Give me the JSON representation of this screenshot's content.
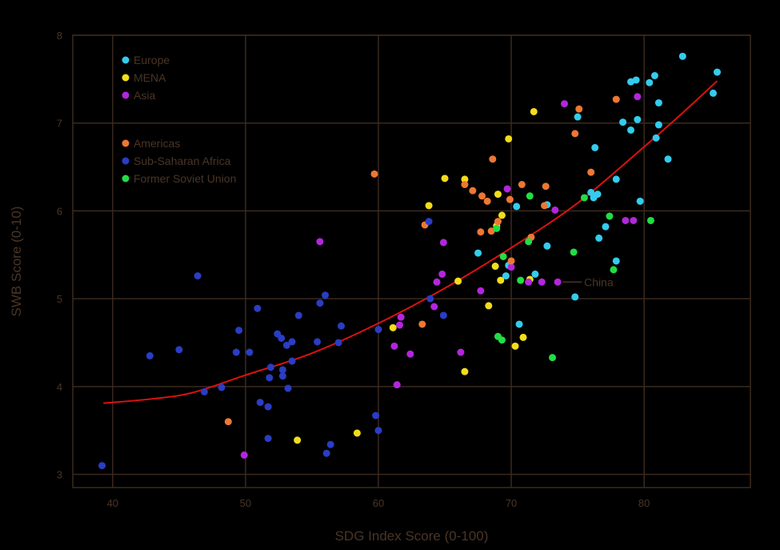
{
  "chart_data": {
    "type": "scatter",
    "title": "",
    "xlabel": "SDG Index Score (0-100)",
    "ylabel": "SWB Score (0-10)",
    "xlim": [
      37,
      88
    ],
    "ylim": [
      2.85,
      8
    ],
    "xticks": [
      40,
      50,
      60,
      70,
      80
    ],
    "yticks": [
      3,
      4,
      5,
      6,
      7,
      8
    ],
    "grid": true,
    "legend_position": "top-left",
    "series": [
      {
        "name": "Europe",
        "color": "#33ccee",
        "points": [
          [
            82.9,
            7.76
          ],
          [
            85.5,
            7.58
          ],
          [
            80.8,
            7.54
          ],
          [
            79.4,
            7.49
          ],
          [
            79.0,
            7.47
          ],
          [
            80.4,
            7.46
          ],
          [
            85.2,
            7.34
          ],
          [
            81.1,
            7.23
          ],
          [
            75.0,
            7.07
          ],
          [
            79.5,
            7.04
          ],
          [
            78.4,
            7.01
          ],
          [
            81.1,
            6.98
          ],
          [
            79.0,
            6.92
          ],
          [
            80.9,
            6.83
          ],
          [
            76.3,
            6.72
          ],
          [
            81.8,
            6.59
          ],
          [
            77.9,
            6.36
          ],
          [
            76.5,
            6.19
          ],
          [
            76.0,
            6.21
          ],
          [
            76.2,
            6.15
          ],
          [
            79.7,
            6.11
          ],
          [
            72.7,
            6.07
          ],
          [
            70.4,
            6.05
          ],
          [
            77.1,
            5.82
          ],
          [
            76.6,
            5.69
          ],
          [
            72.7,
            5.6
          ],
          [
            67.5,
            5.52
          ],
          [
            77.9,
            5.43
          ],
          [
            69.8,
            5.38
          ],
          [
            71.8,
            5.28
          ],
          [
            69.6,
            5.26
          ],
          [
            74.8,
            5.02
          ],
          [
            70.6,
            4.71
          ]
        ]
      },
      {
        "name": "MENA",
        "color": "#f2dd1a",
        "points": [
          [
            71.7,
            7.13
          ],
          [
            69.8,
            6.82
          ],
          [
            65.0,
            6.37
          ],
          [
            66.5,
            6.36
          ],
          [
            69.0,
            6.19
          ],
          [
            63.8,
            6.06
          ],
          [
            69.3,
            5.95
          ],
          [
            68.9,
            5.83
          ],
          [
            68.8,
            5.37
          ],
          [
            69.2,
            5.21
          ],
          [
            71.4,
            5.22
          ],
          [
            66.0,
            5.2
          ],
          [
            68.3,
            4.92
          ],
          [
            61.1,
            4.67
          ],
          [
            70.9,
            4.56
          ],
          [
            70.3,
            4.46
          ],
          [
            66.5,
            4.17
          ],
          [
            58.4,
            3.47
          ],
          [
            53.9,
            3.39
          ]
        ]
      },
      {
        "name": "Asia",
        "color": "#b326dc",
        "points": [
          [
            74.0,
            7.22
          ],
          [
            79.5,
            7.3
          ],
          [
            69.7,
            6.25
          ],
          [
            73.3,
            6.01
          ],
          [
            78.6,
            5.89
          ],
          [
            79.2,
            5.89
          ],
          [
            55.6,
            5.65
          ],
          [
            64.9,
            5.64
          ],
          [
            70.0,
            5.36
          ],
          [
            64.8,
            5.28
          ],
          [
            64.4,
            5.19
          ],
          [
            71.3,
            5.19
          ],
          [
            72.3,
            5.19
          ],
          [
            73.5,
            5.19
          ],
          [
            67.7,
            5.09
          ],
          [
            64.2,
            4.91
          ],
          [
            61.7,
            4.79
          ],
          [
            61.6,
            4.7
          ],
          [
            61.2,
            4.46
          ],
          [
            62.4,
            4.37
          ],
          [
            66.2,
            4.39
          ],
          [
            61.4,
            4.02
          ],
          [
            49.9,
            3.22
          ]
        ]
      },
      {
        "name": "Americas",
        "color": "#ee7733",
        "points": [
          [
            75.1,
            7.16
          ],
          [
            77.9,
            7.27
          ],
          [
            74.8,
            6.88
          ],
          [
            68.6,
            6.59
          ],
          [
            59.7,
            6.42
          ],
          [
            76.0,
            6.44
          ],
          [
            66.5,
            6.3
          ],
          [
            67.1,
            6.23
          ],
          [
            67.8,
            6.17
          ],
          [
            68.2,
            6.11
          ],
          [
            70.8,
            6.3
          ],
          [
            72.6,
            6.28
          ],
          [
            69.9,
            6.13
          ],
          [
            72.5,
            6.06
          ],
          [
            63.5,
            5.84
          ],
          [
            69.0,
            5.88
          ],
          [
            67.7,
            5.76
          ],
          [
            68.5,
            5.77
          ],
          [
            71.5,
            5.7
          ],
          [
            70.0,
            5.43
          ],
          [
            63.3,
            4.71
          ],
          [
            48.7,
            3.6
          ]
        ]
      },
      {
        "name": "Sub-Saharan Africa",
        "color": "#2a3dc4",
        "points": [
          [
            46.4,
            5.26
          ],
          [
            63.8,
            5.88
          ],
          [
            56.0,
            5.04
          ],
          [
            55.6,
            4.95
          ],
          [
            50.9,
            4.89
          ],
          [
            54.0,
            4.81
          ],
          [
            64.9,
            4.81
          ],
          [
            63.9,
            5.0
          ],
          [
            57.2,
            4.69
          ],
          [
            49.5,
            4.64
          ],
          [
            60.0,
            4.65
          ],
          [
            52.4,
            4.6
          ],
          [
            52.7,
            4.55
          ],
          [
            53.5,
            4.51
          ],
          [
            53.1,
            4.47
          ],
          [
            55.4,
            4.51
          ],
          [
            57.0,
            4.5
          ],
          [
            45.0,
            4.42
          ],
          [
            49.3,
            4.39
          ],
          [
            50.3,
            4.39
          ],
          [
            42.8,
            4.35
          ],
          [
            53.5,
            4.29
          ],
          [
            51.9,
            4.22
          ],
          [
            52.8,
            4.19
          ],
          [
            51.8,
            4.1
          ],
          [
            52.8,
            4.12
          ],
          [
            48.2,
            3.99
          ],
          [
            53.2,
            3.98
          ],
          [
            46.9,
            3.94
          ],
          [
            51.1,
            3.82
          ],
          [
            51.7,
            3.77
          ],
          [
            59.8,
            3.67
          ],
          [
            60.0,
            3.5
          ],
          [
            51.7,
            3.41
          ],
          [
            56.4,
            3.34
          ],
          [
            56.1,
            3.24
          ],
          [
            39.2,
            3.1
          ]
        ]
      },
      {
        "name": "Former Soviet Union",
        "color": "#22dd44",
        "points": [
          [
            71.4,
            6.17
          ],
          [
            75.5,
            6.15
          ],
          [
            77.4,
            5.94
          ],
          [
            80.5,
            5.89
          ],
          [
            68.9,
            5.8
          ],
          [
            71.3,
            5.65
          ],
          [
            74.7,
            5.53
          ],
          [
            69.4,
            5.48
          ],
          [
            77.7,
            5.33
          ],
          [
            70.7,
            5.21
          ],
          [
            69.0,
            4.57
          ],
          [
            69.3,
            4.53
          ],
          [
            73.1,
            4.33
          ]
        ]
      }
    ],
    "trend_line": {
      "color": "#dd1111",
      "points": [
        [
          39.3,
          3.81
        ],
        [
          43,
          3.86
        ],
        [
          46,
          3.93
        ],
        [
          50,
          4.13
        ],
        [
          55,
          4.38
        ],
        [
          60,
          4.72
        ],
        [
          65,
          5.12
        ],
        [
          70,
          5.58
        ],
        [
          75,
          6.09
        ],
        [
          80,
          6.73
        ],
        [
          83,
          7.13
        ],
        [
          85.5,
          7.48
        ]
      ]
    },
    "annotations": [
      {
        "text": "China",
        "x": 73.5,
        "y": 5.19
      }
    ]
  }
}
